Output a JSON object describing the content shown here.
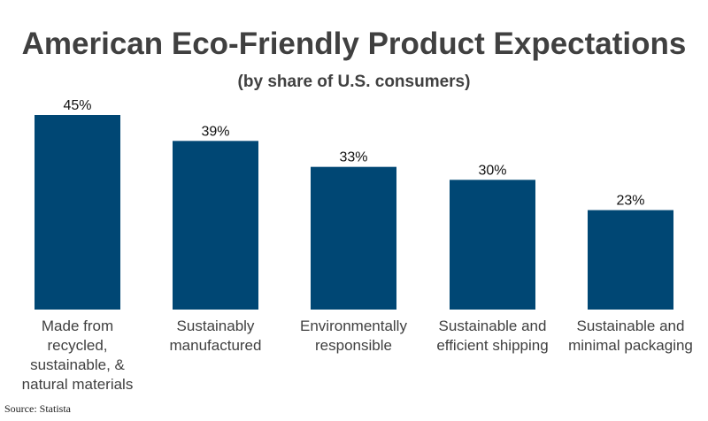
{
  "chart_data": {
    "type": "bar",
    "title": "American Eco-Friendly Product Expectations",
    "subtitle": "(by share of U.S. consumers)",
    "categories": [
      "Made from recycled, sustainable, & natural materials",
      "Sustainably manufactured",
      "Environmentally responsible",
      "Sustainable and efficient shipping",
      "Sustainable and minimal packaging"
    ],
    "values": [
      45,
      39,
      33,
      30,
      23
    ],
    "data_labels": [
      "45%",
      "39%",
      "33%",
      "30%",
      "23%"
    ],
    "xlabel": "",
    "ylabel": "",
    "ylim": [
      0,
      45
    ],
    "grid": false,
    "bar_color": "#004774",
    "source": "Source: Statista"
  }
}
